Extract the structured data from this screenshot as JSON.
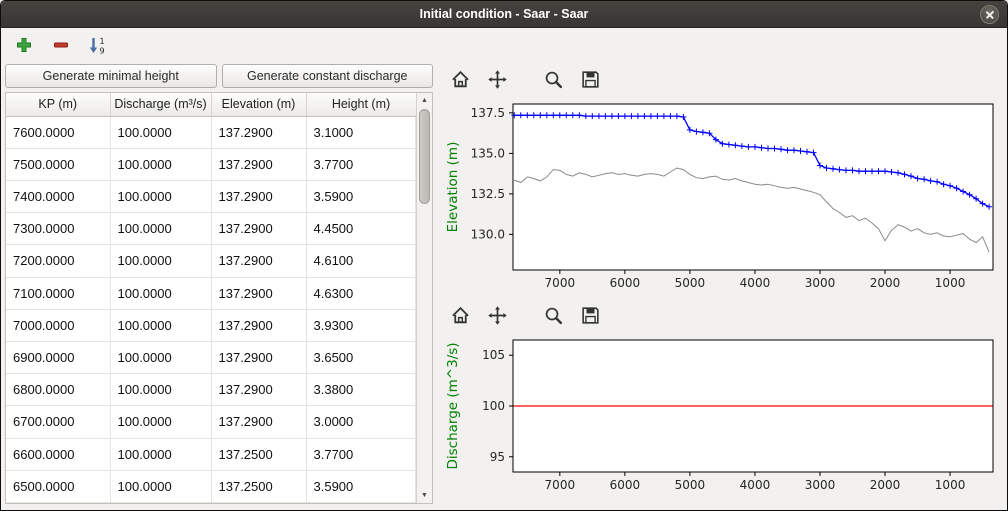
{
  "window": {
    "title": "Initial condition - Saar - Saar"
  },
  "toolbar": {
    "add_icon": "plus-icon",
    "remove_icon": "minus-icon",
    "sort_icon": "sort-numeric-icon",
    "sort_top": "1",
    "sort_bottom": "9"
  },
  "icons": {
    "scroll_up": "▲",
    "scroll_down": "▼"
  },
  "mpl_toolbar": {
    "buttons": [
      "home",
      "pan",
      "zoom",
      "save"
    ]
  },
  "left_panel": {
    "buttons": {
      "minimal_height": "Generate minimal height",
      "constant_discharge": "Generate constant discharge"
    },
    "table": {
      "columns": [
        "KP (m)",
        "Discharge (m³/s)",
        "Elevation (m)",
        "Height (m)"
      ],
      "rows": [
        [
          "7600.0000",
          "100.0000",
          "137.2900",
          "3.1000"
        ],
        [
          "7500.0000",
          "100.0000",
          "137.2900",
          "3.7700"
        ],
        [
          "7400.0000",
          "100.0000",
          "137.2900",
          "3.5900"
        ],
        [
          "7300.0000",
          "100.0000",
          "137.2900",
          "4.4500"
        ],
        [
          "7200.0000",
          "100.0000",
          "137.2900",
          "4.6100"
        ],
        [
          "7100.0000",
          "100.0000",
          "137.2900",
          "4.6300"
        ],
        [
          "7000.0000",
          "100.0000",
          "137.2900",
          "3.9300"
        ],
        [
          "6900.0000",
          "100.0000",
          "137.2900",
          "3.6500"
        ],
        [
          "6800.0000",
          "100.0000",
          "137.2900",
          "3.3800"
        ],
        [
          "6700.0000",
          "100.0000",
          "137.2900",
          "3.0000"
        ],
        [
          "6600.0000",
          "100.0000",
          "137.2500",
          "3.7700"
        ],
        [
          "6500.0000",
          "100.0000",
          "137.2500",
          "3.5900"
        ]
      ]
    }
  },
  "chart_data": [
    {
      "type": "line",
      "title": "",
      "xlabel": "",
      "ylabel": "Elevation (m)",
      "ylabel_color": "#008000",
      "xlim": [
        7720,
        340
      ],
      "ylim": [
        127.8,
        138.05
      ],
      "xticks": [
        7000,
        6000,
        5000,
        4000,
        3000,
        2000,
        1000
      ],
      "yticks": [
        137.5,
        135.0,
        132.5,
        130.0
      ],
      "ytick_labels": [
        "137.5",
        "135.0",
        "132.5",
        "130.0"
      ],
      "grid": false,
      "series": [
        {
          "name": "water-elevation",
          "color": "#0000ff",
          "marker": "+",
          "width": 1.3,
          "points": [
            [
              7700,
              137.35
            ],
            [
              7600,
              137.35
            ],
            [
              7500,
              137.35
            ],
            [
              7400,
              137.35
            ],
            [
              7300,
              137.35
            ],
            [
              7200,
              137.35
            ],
            [
              7100,
              137.35
            ],
            [
              7000,
              137.35
            ],
            [
              6900,
              137.35
            ],
            [
              6800,
              137.35
            ],
            [
              6700,
              137.35
            ],
            [
              6600,
              137.3
            ],
            [
              6500,
              137.3
            ],
            [
              6400,
              137.3
            ],
            [
              6300,
              137.3
            ],
            [
              6200,
              137.3
            ],
            [
              6100,
              137.3
            ],
            [
              6000,
              137.3
            ],
            [
              5900,
              137.3
            ],
            [
              5800,
              137.3
            ],
            [
              5700,
              137.3
            ],
            [
              5600,
              137.3
            ],
            [
              5500,
              137.3
            ],
            [
              5400,
              137.3
            ],
            [
              5300,
              137.3
            ],
            [
              5200,
              137.3
            ],
            [
              5100,
              137.25
            ],
            [
              5000,
              136.45
            ],
            [
              4900,
              136.35
            ],
            [
              4800,
              136.3
            ],
            [
              4700,
              136.25
            ],
            [
              4600,
              135.85
            ],
            [
              4500,
              135.6
            ],
            [
              4400,
              135.55
            ],
            [
              4300,
              135.5
            ],
            [
              4200,
              135.45
            ],
            [
              4100,
              135.4
            ],
            [
              4000,
              135.4
            ],
            [
              3900,
              135.35
            ],
            [
              3800,
              135.3
            ],
            [
              3700,
              135.3
            ],
            [
              3600,
              135.25
            ],
            [
              3500,
              135.2
            ],
            [
              3400,
              135.2
            ],
            [
              3300,
              135.15
            ],
            [
              3200,
              135.1
            ],
            [
              3100,
              135.05
            ],
            [
              3000,
              134.25
            ],
            [
              2900,
              134.1
            ],
            [
              2800,
              134.05
            ],
            [
              2700,
              134.0
            ],
            [
              2600,
              133.95
            ],
            [
              2500,
              133.95
            ],
            [
              2400,
              133.9
            ],
            [
              2300,
              133.9
            ],
            [
              2200,
              133.9
            ],
            [
              2100,
              133.9
            ],
            [
              2000,
              133.9
            ],
            [
              1900,
              133.85
            ],
            [
              1800,
              133.8
            ],
            [
              1700,
              133.7
            ],
            [
              1600,
              133.6
            ],
            [
              1500,
              133.45
            ],
            [
              1400,
              133.4
            ],
            [
              1300,
              133.3
            ],
            [
              1200,
              133.25
            ],
            [
              1100,
              133.1
            ],
            [
              1000,
              133.0
            ],
            [
              900,
              132.85
            ],
            [
              800,
              132.65
            ],
            [
              700,
              132.45
            ],
            [
              600,
              132.2
            ],
            [
              500,
              131.9
            ],
            [
              400,
              131.7
            ]
          ]
        },
        {
          "name": "bed-elevation",
          "color": "#8a8a8a",
          "marker": "none",
          "width": 1.0,
          "points": [
            [
              7700,
              133.35
            ],
            [
              7600,
              133.2
            ],
            [
              7500,
              133.55
            ],
            [
              7400,
              133.45
            ],
            [
              7300,
              133.3
            ],
            [
              7200,
              133.55
            ],
            [
              7100,
              134.0
            ],
            [
              7000,
              133.95
            ],
            [
              6900,
              133.7
            ],
            [
              6800,
              133.6
            ],
            [
              6700,
              133.8
            ],
            [
              6600,
              133.7
            ],
            [
              6500,
              133.55
            ],
            [
              6400,
              133.65
            ],
            [
              6300,
              133.75
            ],
            [
              6200,
              133.8
            ],
            [
              6100,
              133.7
            ],
            [
              6000,
              133.75
            ],
            [
              5900,
              133.65
            ],
            [
              5800,
              133.6
            ],
            [
              5700,
              133.7
            ],
            [
              5600,
              133.75
            ],
            [
              5500,
              133.7
            ],
            [
              5400,
              133.6
            ],
            [
              5300,
              133.85
            ],
            [
              5200,
              134.1
            ],
            [
              5100,
              134.0
            ],
            [
              5000,
              133.7
            ],
            [
              4900,
              133.5
            ],
            [
              4800,
              133.45
            ],
            [
              4700,
              133.55
            ],
            [
              4600,
              133.6
            ],
            [
              4500,
              133.4
            ],
            [
              4400,
              133.35
            ],
            [
              4300,
              133.45
            ],
            [
              4200,
              133.3
            ],
            [
              4100,
              133.2
            ],
            [
              4000,
              133.1
            ],
            [
              3900,
              133.05
            ],
            [
              3800,
              133.1
            ],
            [
              3700,
              133.0
            ],
            [
              3600,
              132.9
            ],
            [
              3500,
              132.85
            ],
            [
              3400,
              132.9
            ],
            [
              3300,
              132.8
            ],
            [
              3200,
              132.7
            ],
            [
              3100,
              132.6
            ],
            [
              3000,
              132.45
            ],
            [
              2900,
              132.0
            ],
            [
              2800,
              131.6
            ],
            [
              2700,
              131.35
            ],
            [
              2600,
              131.05
            ],
            [
              2500,
              131.15
            ],
            [
              2400,
              130.85
            ],
            [
              2300,
              131.0
            ],
            [
              2200,
              130.7
            ],
            [
              2100,
              130.35
            ],
            [
              2000,
              129.6
            ],
            [
              1900,
              130.25
            ],
            [
              1800,
              130.6
            ],
            [
              1700,
              130.45
            ],
            [
              1600,
              130.2
            ],
            [
              1500,
              130.35
            ],
            [
              1400,
              130.1
            ],
            [
              1300,
              130.0
            ],
            [
              1200,
              130.1
            ],
            [
              1100,
              129.9
            ],
            [
              1000,
              129.85
            ],
            [
              900,
              129.95
            ],
            [
              800,
              130.05
            ],
            [
              700,
              129.7
            ],
            [
              600,
              129.5
            ],
            [
              500,
              129.85
            ],
            [
              400,
              128.9
            ]
          ]
        }
      ]
    },
    {
      "type": "line",
      "title": "",
      "xlabel": "",
      "ylabel": "Discharge (m^3/s)",
      "ylabel_color": "#008000",
      "xlim": [
        7720,
        340
      ],
      "ylim": [
        93.5,
        106.5
      ],
      "xticks": [
        7000,
        6000,
        5000,
        4000,
        3000,
        2000,
        1000
      ],
      "yticks": [
        105,
        100,
        95
      ],
      "ytick_labels": [
        "105",
        "100",
        "95"
      ],
      "grid": false,
      "series": [
        {
          "name": "discharge",
          "color": "#ff0000",
          "marker": "none",
          "width": 1.3,
          "points": [
            [
              7720,
              100
            ],
            [
              340,
              100
            ]
          ]
        }
      ]
    }
  ]
}
